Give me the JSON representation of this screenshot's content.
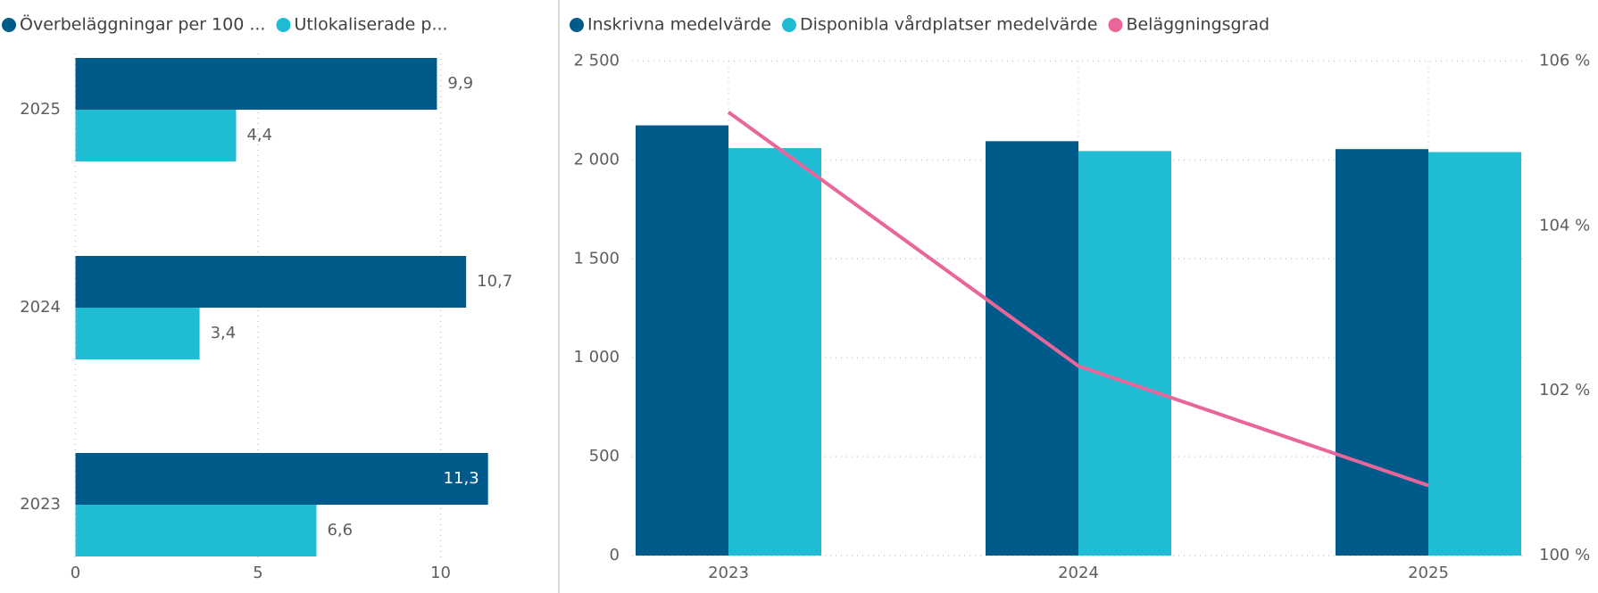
{
  "chart_data": [
    {
      "type": "hbar",
      "categories": [
        "2025",
        "2024",
        "2023"
      ],
      "series": [
        {
          "name": "Överbeläggningar per 100 ...",
          "color": "#005b8a",
          "values": [
            9.9,
            10.7,
            11.3
          ],
          "value_labels": [
            "9,9",
            "10,7",
            "11,3"
          ]
        },
        {
          "name": "Utlokaliserade p...",
          "color": "#20bcd4",
          "values": [
            4.4,
            3.4,
            6.6
          ],
          "value_labels": [
            "4,4",
            "3,4",
            "6,6"
          ]
        }
      ],
      "xlim": [
        0,
        12.2
      ],
      "xticks": [
        0,
        5,
        10
      ],
      "grid": true
    },
    {
      "type": "combo",
      "categories": [
        "2023",
        "2024",
        "2025"
      ],
      "series": [
        {
          "name": "Inskrivna medelvärde",
          "color": "#005b8a",
          "values": [
            2175,
            2095,
            2055
          ]
        },
        {
          "name": "Disponibla vårdplatser medelvärde",
          "color": "#20bcd4",
          "values": [
            2060,
            2045,
            2040
          ]
        },
        {
          "name": "Beläggningsgrad",
          "color": "#e9669a",
          "values": [
            105.38,
            102.3,
            100.85
          ],
          "axis": "y2"
        }
      ],
      "ylim": [
        0,
        2500
      ],
      "yticks": [
        0,
        500,
        {
          "value": 1000,
          "label": "1 000"
        },
        {
          "value": 1500,
          "label": "1 500"
        },
        {
          "value": 2000,
          "label": "2 000"
        },
        {
          "value": 2500,
          "label": "2 500"
        }
      ],
      "y2lim": [
        100,
        106
      ],
      "y2ticks": [
        {
          "value": 100,
          "label": "100 %"
        },
        {
          "value": 102,
          "label": "102 %"
        },
        {
          "value": 104,
          "label": "104 %"
        },
        {
          "value": 106,
          "label": "106 %"
        }
      ],
      "grid": true
    }
  ]
}
